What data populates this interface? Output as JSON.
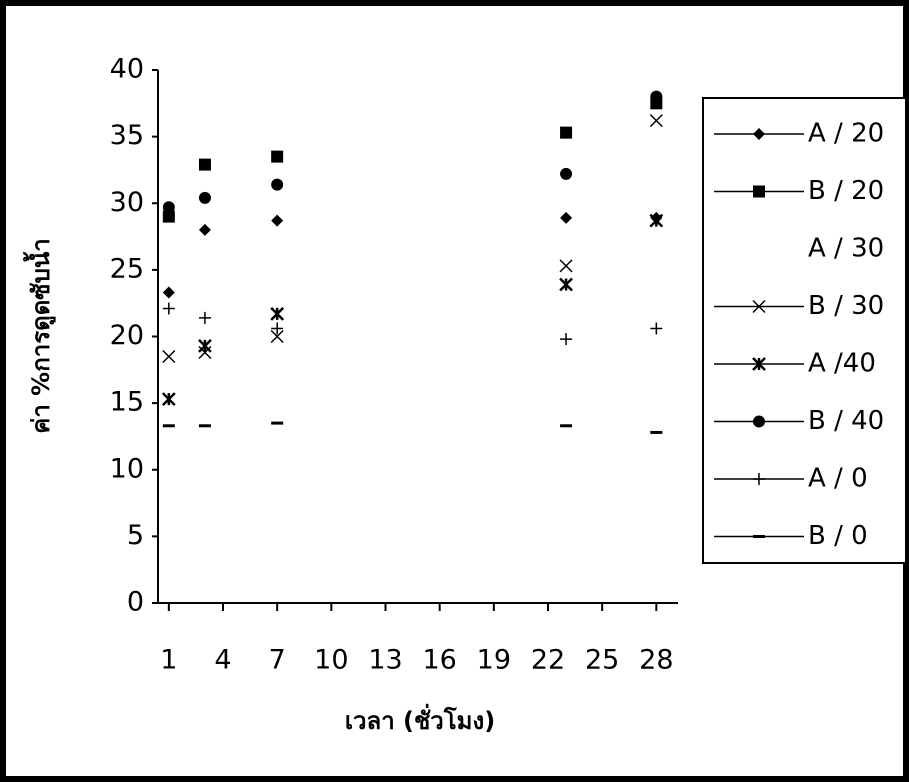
{
  "chart_data": {
    "type": "scatter",
    "x_label": "เวลา (ชั่วโมง)",
    "y_label": "ค่า %การดูดซับน้ำ",
    "x": [
      1,
      3,
      7,
      23,
      28
    ],
    "xlim": [
      0.4,
      29.2
    ],
    "xticks": [
      1,
      4,
      7,
      10,
      13,
      16,
      19,
      22,
      25,
      28
    ],
    "ylim": [
      0,
      40
    ],
    "yticks": [
      0,
      5,
      10,
      15,
      20,
      25,
      30,
      35,
      40
    ],
    "series": [
      {
        "name": "A / 20",
        "color": "#000000",
        "marker": "diamond",
        "values": [
          23.3,
          28,
          28.7,
          28.9,
          28.9
        ]
      },
      {
        "name": "B / 20",
        "color": "#000000",
        "marker": "square",
        "values": [
          29,
          32.9,
          33.5,
          35.3,
          37.5
        ]
      },
      {
        "name": "A / 30",
        "color": "#000000",
        "marker": "none",
        "values": [
          null,
          null,
          null,
          null,
          null
        ]
      },
      {
        "name": "B / 30",
        "color": "#000000",
        "marker": "x",
        "values": [
          18.5,
          18.8,
          20,
          25.3,
          36.2
        ]
      },
      {
        "name": "A /40",
        "color": "#000000",
        "marker": "star",
        "values": [
          15.3,
          19.3,
          21.7,
          23.9,
          28.7
        ]
      },
      {
        "name": "B / 40",
        "color": "#000000",
        "marker": "circle",
        "values": [
          29.7,
          30.4,
          31.4,
          32.2,
          38
        ]
      },
      {
        "name": "A / 0",
        "color": "#000000",
        "marker": "plus",
        "values": [
          22.1,
          21.4,
          20.6,
          19.8,
          20.6
        ]
      },
      {
        "name": "B / 0",
        "color": "#000000",
        "marker": "dash",
        "values": [
          13.3,
          13.3,
          13.5,
          13.3,
          12.8
        ]
      }
    ]
  }
}
